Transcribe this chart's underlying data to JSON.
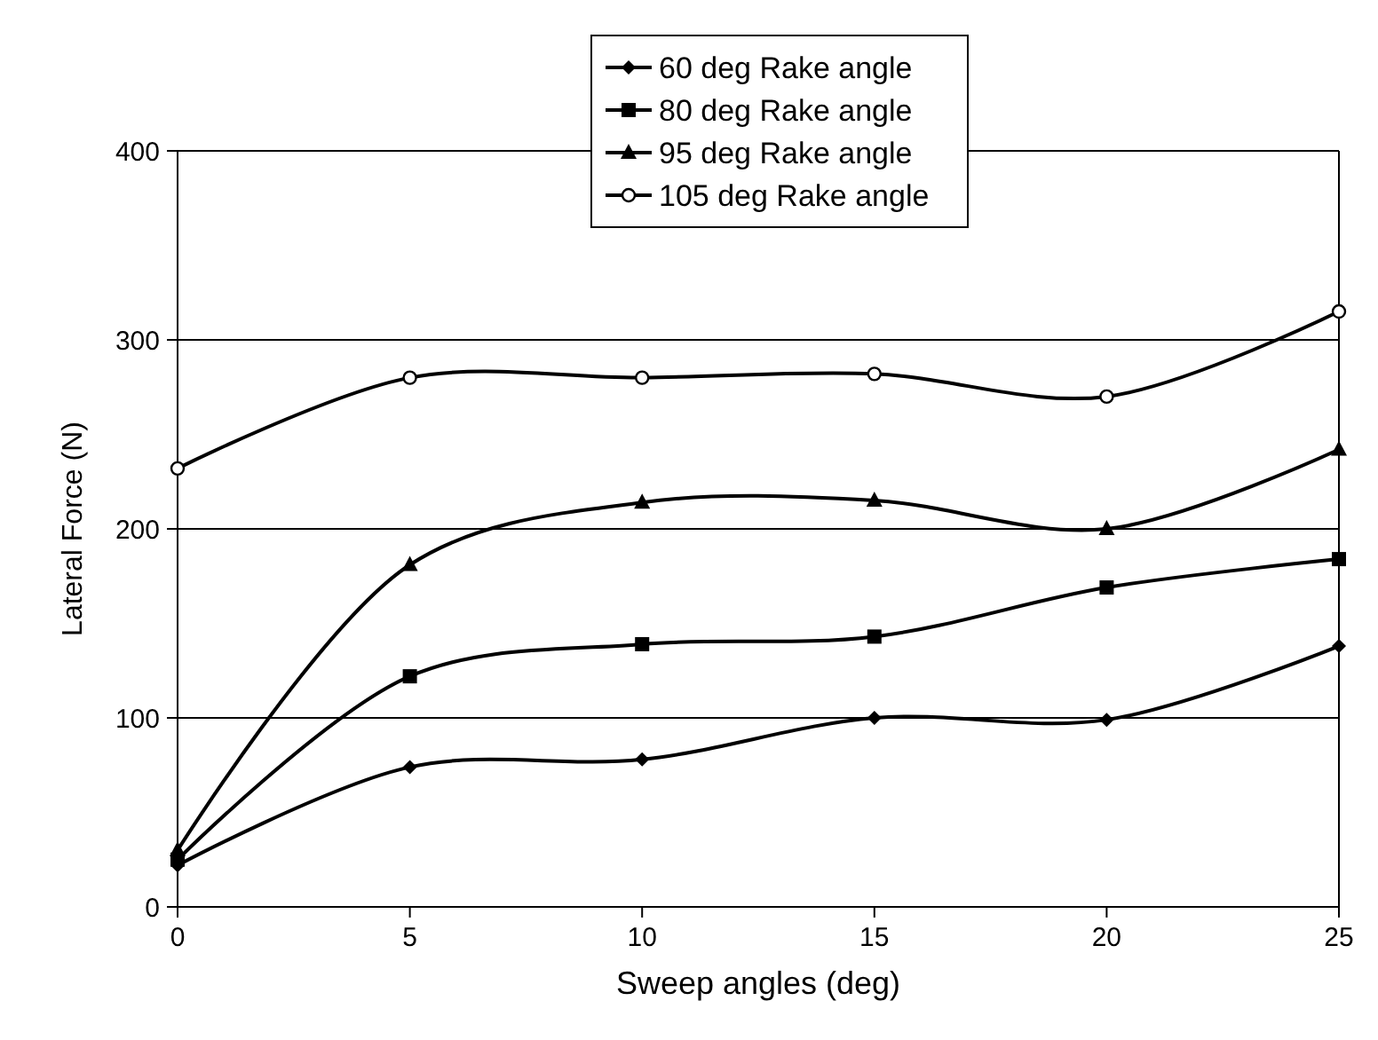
{
  "chart_data": {
    "type": "line",
    "xlabel": "Sweep angles (deg)",
    "ylabel": "Lateral Force (N)",
    "x": [
      0,
      5,
      10,
      15,
      20,
      25
    ],
    "xlim": [
      0,
      25
    ],
    "xticks": [
      0,
      5,
      10,
      15,
      20,
      25
    ],
    "ylim": [
      0,
      400
    ],
    "yticks": [
      0,
      100,
      200,
      300,
      400
    ],
    "grid": "y",
    "legend": "top",
    "line_style": "solid",
    "series": [
      {
        "name": "60 deg Rake angle",
        "color": "#000000",
        "marker": "diamond",
        "values": [
          22,
          74,
          78,
          100,
          99,
          138
        ]
      },
      {
        "name": "80 deg Rake angle",
        "color": "#000000",
        "marker": "square",
        "values": [
          25,
          122,
          139,
          143,
          169,
          184
        ]
      },
      {
        "name": "95 deg Rake angle",
        "color": "#000000",
        "marker": "triangle",
        "values": [
          30,
          181,
          214,
          215,
          200,
          242
        ]
      },
      {
        "name": "105 deg Rake angle",
        "color": "#000000",
        "marker": "circle",
        "values": [
          232,
          280,
          280,
          282,
          270,
          315
        ]
      }
    ]
  }
}
